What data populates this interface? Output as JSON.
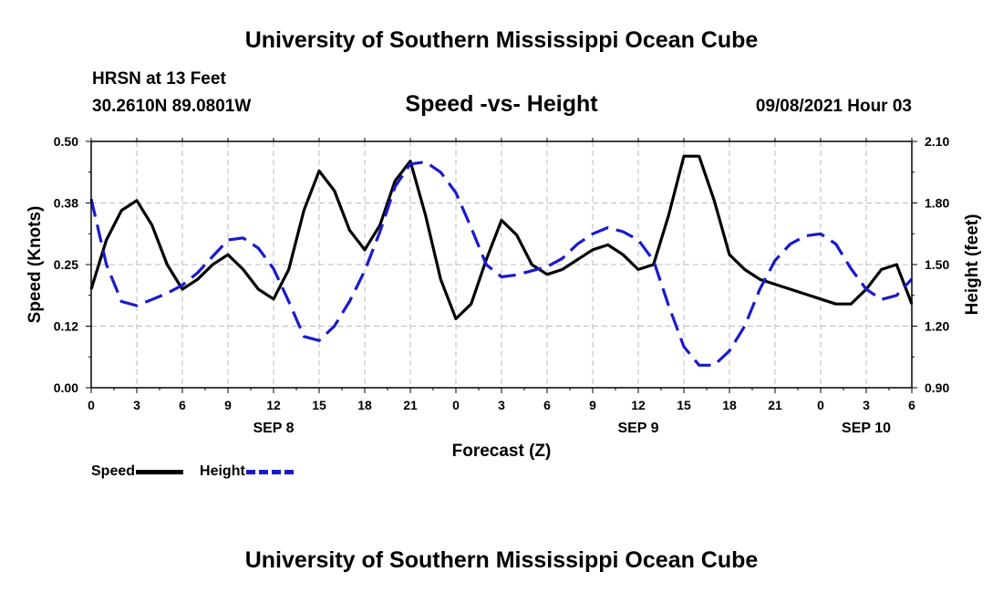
{
  "header": {
    "title": "University of Southern Mississippi Ocean Cube",
    "station": "HRSN at 13 Feet",
    "coords": "30.2610N  89.0801W",
    "subtitle": "Speed -vs- Height",
    "datetime": "09/08/2021 Hour 03"
  },
  "footer": {
    "title": "University of Southern Mississippi Ocean Cube"
  },
  "legend": {
    "speed_label": "Speed",
    "height_label": "Height"
  },
  "colors": {
    "speed": "#000000",
    "height": "#1a1acc",
    "grid": "#bbbbbb"
  },
  "chart_data": {
    "type": "line",
    "xlabel": "Forecast (Z)",
    "ylabel_left": "Speed (Knots)",
    "ylabel_right": "Height (feet)",
    "x_tick_labels": [
      "0",
      "3",
      "6",
      "9",
      "12",
      "15",
      "18",
      "21",
      "0",
      "3",
      "6",
      "9",
      "12",
      "15",
      "18",
      "21",
      "0",
      "3",
      "6"
    ],
    "day_labels": [
      {
        "label": "SEP 8",
        "tick_index": 4
      },
      {
        "label": "SEP 9",
        "tick_index": 12
      },
      {
        "label": "SEP 10",
        "tick_index": 17
      }
    ],
    "xlim": [
      0,
      54
    ],
    "ylim_left": [
      0,
      0.5
    ],
    "y_left_ticks": [
      "0.00",
      "0.12",
      "0.25",
      "0.38",
      "0.50"
    ],
    "ylim_right": [
      0.9,
      2.1
    ],
    "y_right_ticks": [
      "0.90",
      "1.20",
      "1.50",
      "1.80",
      "2.10"
    ],
    "series": [
      {
        "name": "Speed",
        "axis": "left",
        "x": [
          0,
          1,
          2,
          3,
          4,
          5,
          6,
          7,
          8,
          9,
          10,
          11,
          12,
          13,
          14,
          15,
          16,
          17,
          18,
          19,
          20,
          21,
          22,
          23,
          24,
          25,
          26,
          27,
          28,
          29,
          30,
          31,
          32,
          33,
          34,
          35,
          36,
          37,
          38,
          39,
          40,
          41,
          42,
          43,
          44,
          45,
          46,
          47,
          48,
          49,
          50,
          51,
          52,
          53,
          54
        ],
        "values": [
          0.2,
          0.3,
          0.36,
          0.38,
          0.33,
          0.25,
          0.2,
          0.22,
          0.25,
          0.27,
          0.24,
          0.2,
          0.18,
          0.24,
          0.36,
          0.44,
          0.4,
          0.32,
          0.28,
          0.33,
          0.42,
          0.46,
          0.35,
          0.22,
          0.14,
          0.17,
          0.26,
          0.34,
          0.31,
          0.25,
          0.23,
          0.24,
          0.26,
          0.28,
          0.29,
          0.27,
          0.24,
          0.25,
          0.35,
          0.47,
          0.47,
          0.38,
          0.27,
          0.24,
          0.22,
          0.21,
          0.2,
          0.19,
          0.18,
          0.17,
          0.17,
          0.2,
          0.24,
          0.25,
          0.17
        ]
      },
      {
        "name": "Height",
        "axis": "right",
        "x": [
          0,
          1,
          2,
          3,
          4,
          5,
          6,
          7,
          8,
          9,
          10,
          11,
          12,
          13,
          14,
          15,
          16,
          17,
          18,
          19,
          20,
          21,
          22,
          23,
          24,
          25,
          26,
          27,
          28,
          29,
          30,
          31,
          32,
          33,
          34,
          35,
          36,
          37,
          38,
          39,
          40,
          41,
          42,
          43,
          44,
          45,
          46,
          47,
          48,
          49,
          50,
          51,
          52,
          53,
          54
        ],
        "values": [
          1.82,
          1.5,
          1.32,
          1.3,
          1.33,
          1.36,
          1.4,
          1.46,
          1.54,
          1.62,
          1.63,
          1.58,
          1.48,
          1.32,
          1.15,
          1.13,
          1.2,
          1.32,
          1.47,
          1.66,
          1.88,
          1.99,
          2.0,
          1.95,
          1.85,
          1.68,
          1.5,
          1.44,
          1.45,
          1.47,
          1.49,
          1.53,
          1.6,
          1.65,
          1.68,
          1.66,
          1.62,
          1.52,
          1.3,
          1.1,
          1.01,
          1.01,
          1.08,
          1.2,
          1.38,
          1.52,
          1.6,
          1.64,
          1.65,
          1.6,
          1.48,
          1.38,
          1.33,
          1.35,
          1.43
        ]
      }
    ]
  }
}
